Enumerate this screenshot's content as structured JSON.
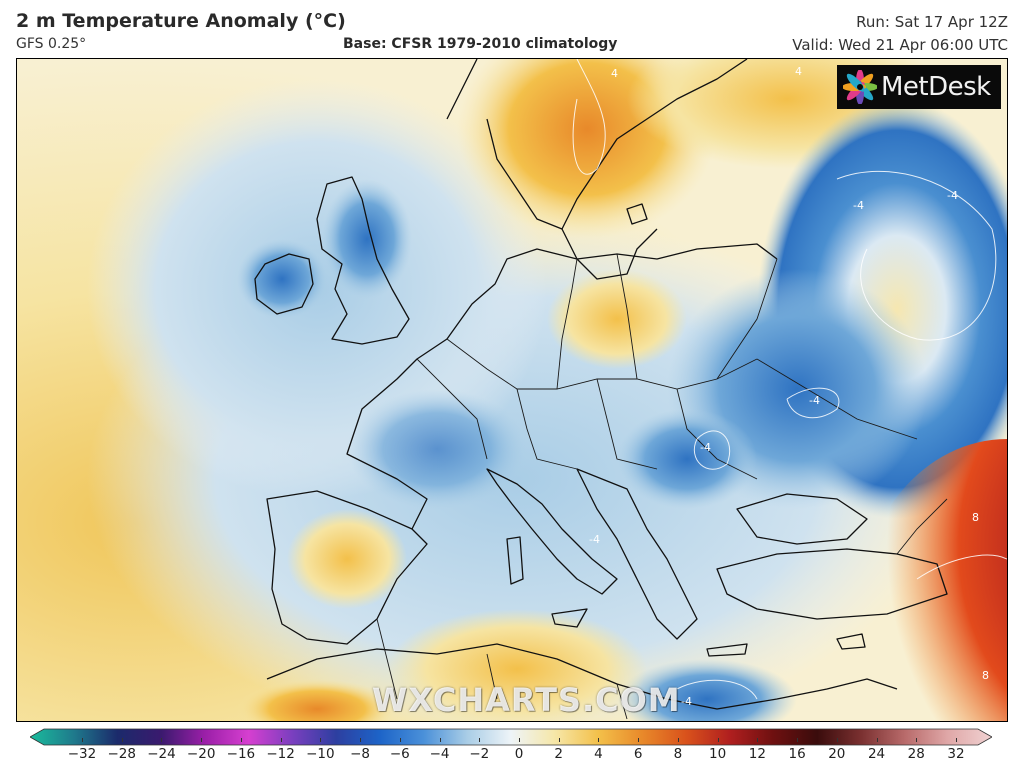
{
  "header": {
    "title": "2 m Temperature Anomaly (°C)",
    "model": "GFS 0.25°",
    "base": "Base: CFSR 1979-2010 climatology",
    "run": "Run: Sat 17 Apr 12Z",
    "valid": "Valid: Wed 21 Apr 06:00 UTC"
  },
  "logo": {
    "text": "MetDesk",
    "icon": "metdesk-flower-icon"
  },
  "watermark": "WXCHARTS.COM",
  "map": {
    "region": "Europe",
    "contour_labels": [
      "-4",
      "4",
      "8"
    ]
  },
  "colorbar": {
    "ticks": [
      "−32",
      "−28",
      "−24",
      "−20",
      "−16",
      "−12",
      "−10",
      "−8",
      "−6",
      "−4",
      "−2",
      "0",
      "2",
      "4",
      "6",
      "8",
      "10",
      "12",
      "16",
      "20",
      "24",
      "28",
      "32"
    ],
    "colors": [
      "#1abc9c",
      "#1f7a8c",
      "#1b2a6b",
      "#3a1a6e",
      "#9b1fa8",
      "#d63fd0",
      "#7a3fbf",
      "#2d3fa0",
      "#1d64c8",
      "#4a90d9",
      "#a9cde6",
      "#eef4f8",
      "#f6e7a8",
      "#f3c04a",
      "#e8892a",
      "#d9521c",
      "#b01f1f",
      "#6e1010",
      "#3a0c0c",
      "#7a3030",
      "#b86a6a",
      "#e0a8a8",
      "#f0d2d2"
    ]
  }
}
